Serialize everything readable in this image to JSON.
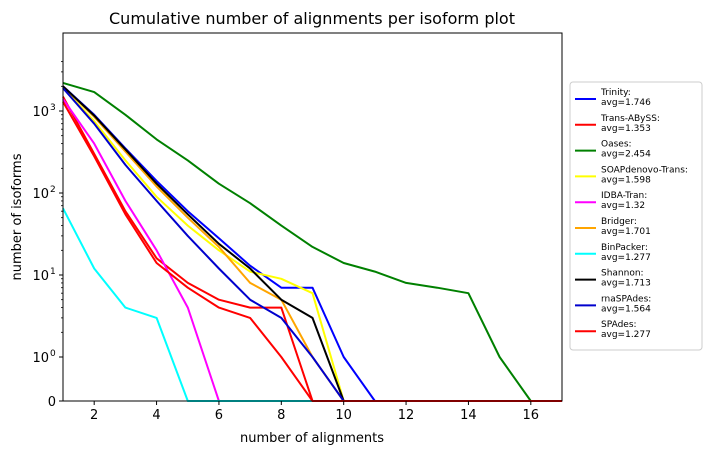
{
  "chart_data": {
    "type": "line",
    "title": "Cumulative number of alignments per isoform plot",
    "xlabel": "number of alignments",
    "ylabel": "number of isoforms",
    "xlim": [
      1,
      17
    ],
    "y_scale": "symlog",
    "x_ticks": [
      2,
      4,
      6,
      8,
      10,
      12,
      14,
      16
    ],
    "y_ticks": [
      {
        "value": 0,
        "label": "0"
      },
      {
        "value": 1,
        "label": "10",
        "exp": "0"
      },
      {
        "value": 10,
        "label": "10",
        "exp": "1"
      },
      {
        "value": 100,
        "label": "10",
        "exp": "2"
      },
      {
        "value": 1000,
        "label": "10",
        "exp": "3"
      }
    ],
    "grid": false,
    "legend_position": "right",
    "series": [
      {
        "name": "Trinity:",
        "sub": "avg=1.746",
        "color": "#0000ff",
        "x": [
          1,
          2,
          3,
          4,
          5,
          6,
          7,
          8,
          9,
          10,
          11,
          12,
          13,
          14,
          15,
          16,
          17
        ],
        "y": [
          2000,
          900,
          350,
          140,
          60,
          28,
          13,
          7,
          7,
          1,
          0,
          0,
          0,
          0,
          0,
          0,
          0
        ]
      },
      {
        "name": "Trans-ABySS:",
        "sub": "avg=1.353",
        "color": "#ff0000",
        "x": [
          1,
          2,
          3,
          4,
          5,
          6,
          7,
          8,
          9,
          10,
          11,
          12,
          13,
          14,
          15,
          16,
          17
        ],
        "y": [
          1500,
          300,
          60,
          16,
          8,
          5,
          4,
          4,
          0,
          0,
          0,
          0,
          0,
          0,
          0,
          0,
          0
        ]
      },
      {
        "name": "Oases:",
        "sub": "avg=2.454",
        "color": "#008000",
        "x": [
          1,
          2,
          3,
          4,
          5,
          6,
          7,
          8,
          9,
          10,
          11,
          12,
          13,
          14,
          15,
          16,
          17
        ],
        "y": [
          2200,
          1700,
          900,
          450,
          250,
          130,
          75,
          40,
          22,
          14,
          11,
          8,
          7,
          6,
          1,
          0,
          0
        ]
      },
      {
        "name": "SOAPdenovo-Trans:",
        "sub": "avg=1.598",
        "color": "#ffff00",
        "x": [
          1,
          2,
          3,
          4,
          5,
          6,
          7,
          8,
          9,
          10,
          11,
          12,
          13,
          14,
          15,
          16,
          17
        ],
        "y": [
          1900,
          750,
          250,
          90,
          40,
          20,
          11,
          9,
          6,
          0,
          0,
          0,
          0,
          0,
          0,
          0,
          0
        ]
      },
      {
        "name": "IDBA-Tran:",
        "sub": "avg=1.32",
        "color": "#ff00ff",
        "x": [
          1,
          2,
          3,
          4,
          5,
          6,
          7,
          8,
          9,
          10,
          11,
          12,
          13,
          14,
          15,
          16,
          17
        ],
        "y": [
          1400,
          400,
          80,
          20,
          4,
          0,
          0,
          0,
          0,
          0,
          0,
          0,
          0,
          0,
          0,
          0,
          0
        ]
      },
      {
        "name": "Bridger:",
        "sub": "avg=1.701",
        "color": "#ffa500",
        "x": [
          1,
          2,
          3,
          4,
          5,
          6,
          7,
          8,
          9,
          10,
          11,
          12,
          13,
          14,
          15,
          16,
          17
        ],
        "y": [
          2000,
          850,
          320,
          120,
          50,
          22,
          8,
          5,
          1,
          0,
          0,
          0,
          0,
          0,
          0,
          0,
          0
        ]
      },
      {
        "name": "BinPacker:",
        "sub": "avg=1.277",
        "color": "#00ffff",
        "x": [
          1,
          2,
          3,
          4,
          5,
          6,
          7,
          8,
          9,
          10,
          11,
          12,
          13,
          14,
          15,
          16,
          17
        ],
        "y": [
          65,
          12,
          4,
          3,
          0,
          0,
          0,
          0,
          0,
          0,
          0,
          0,
          0,
          0,
          0,
          0,
          0
        ]
      },
      {
        "name": "Shannon:",
        "sub": "avg=1.713",
        "color": "#000000",
        "x": [
          1,
          2,
          3,
          4,
          5,
          6,
          7,
          8,
          9,
          10,
          11,
          12,
          13,
          14,
          15,
          16,
          17
        ],
        "y": [
          2000,
          880,
          340,
          130,
          55,
          24,
          12,
          5,
          3,
          0,
          0,
          0,
          0,
          0,
          0,
          0,
          0
        ]
      },
      {
        "name": "rnaSPAdes:",
        "sub": "avg=1.564",
        "color": "#0000cd",
        "x": [
          1,
          2,
          3,
          4,
          5,
          6,
          7,
          8,
          9,
          10,
          11,
          12,
          13,
          14,
          15,
          16,
          17
        ],
        "y": [
          1900,
          700,
          220,
          80,
          30,
          12,
          5,
          3,
          1,
          0,
          0,
          0,
          0,
          0,
          0,
          0,
          0
        ]
      },
      {
        "name": "SPAdes:",
        "sub": "avg=1.277",
        "color": "#ff0000",
        "x": [
          1,
          2,
          3,
          4,
          5,
          6,
          7,
          8,
          9,
          10,
          11,
          12,
          13,
          14,
          15,
          16,
          17
        ],
        "y": [
          1300,
          280,
          55,
          14,
          7,
          4,
          3,
          1,
          0,
          0,
          0,
          0,
          0,
          0,
          0,
          0,
          0
        ]
      }
    ]
  }
}
